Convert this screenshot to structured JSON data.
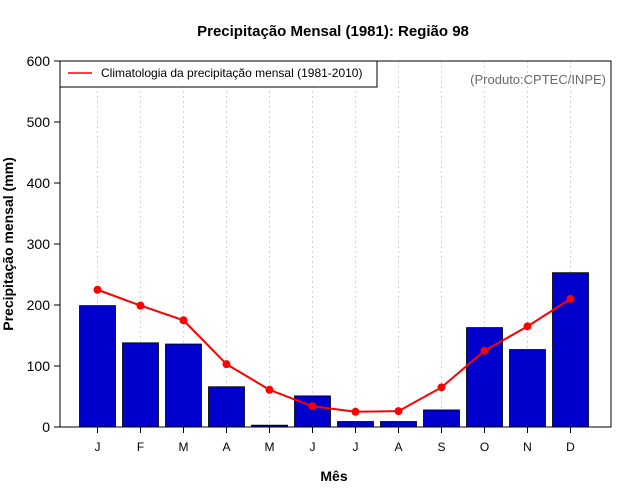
{
  "chart_data": {
    "type": "bar",
    "title": "Precipitação Mensal (1981): Região 98",
    "xlabel": "Mês",
    "ylabel": "Precipitação mensal (mm)",
    "ylim": [
      0,
      600
    ],
    "yticks": [
      0,
      100,
      200,
      300,
      400,
      500,
      600
    ],
    "categories": [
      "J",
      "F",
      "M",
      "A",
      "M",
      "J",
      "J",
      "A",
      "S",
      "O",
      "N",
      "D"
    ],
    "series": [
      {
        "name": "Precipitação mensal (1981)",
        "type": "bar",
        "color": "#0000cd",
        "values": [
          199,
          138,
          136,
          66,
          3,
          51,
          9,
          9,
          28,
          163,
          127,
          253
        ]
      },
      {
        "name": "Climatologia da precipitação mensal (1981-2010)",
        "type": "line",
        "color": "#ff0000",
        "values": [
          225,
          199,
          175,
          103,
          61,
          34,
          25,
          26,
          65,
          125,
          165,
          210
        ]
      }
    ],
    "legend": {
      "position": "top-left",
      "entries": [
        "Climatologia da precipitação mensal (1981-2010)"
      ]
    },
    "annotation": "(Produto:CPTEC/INPE)",
    "grid": "vertical dotted"
  }
}
